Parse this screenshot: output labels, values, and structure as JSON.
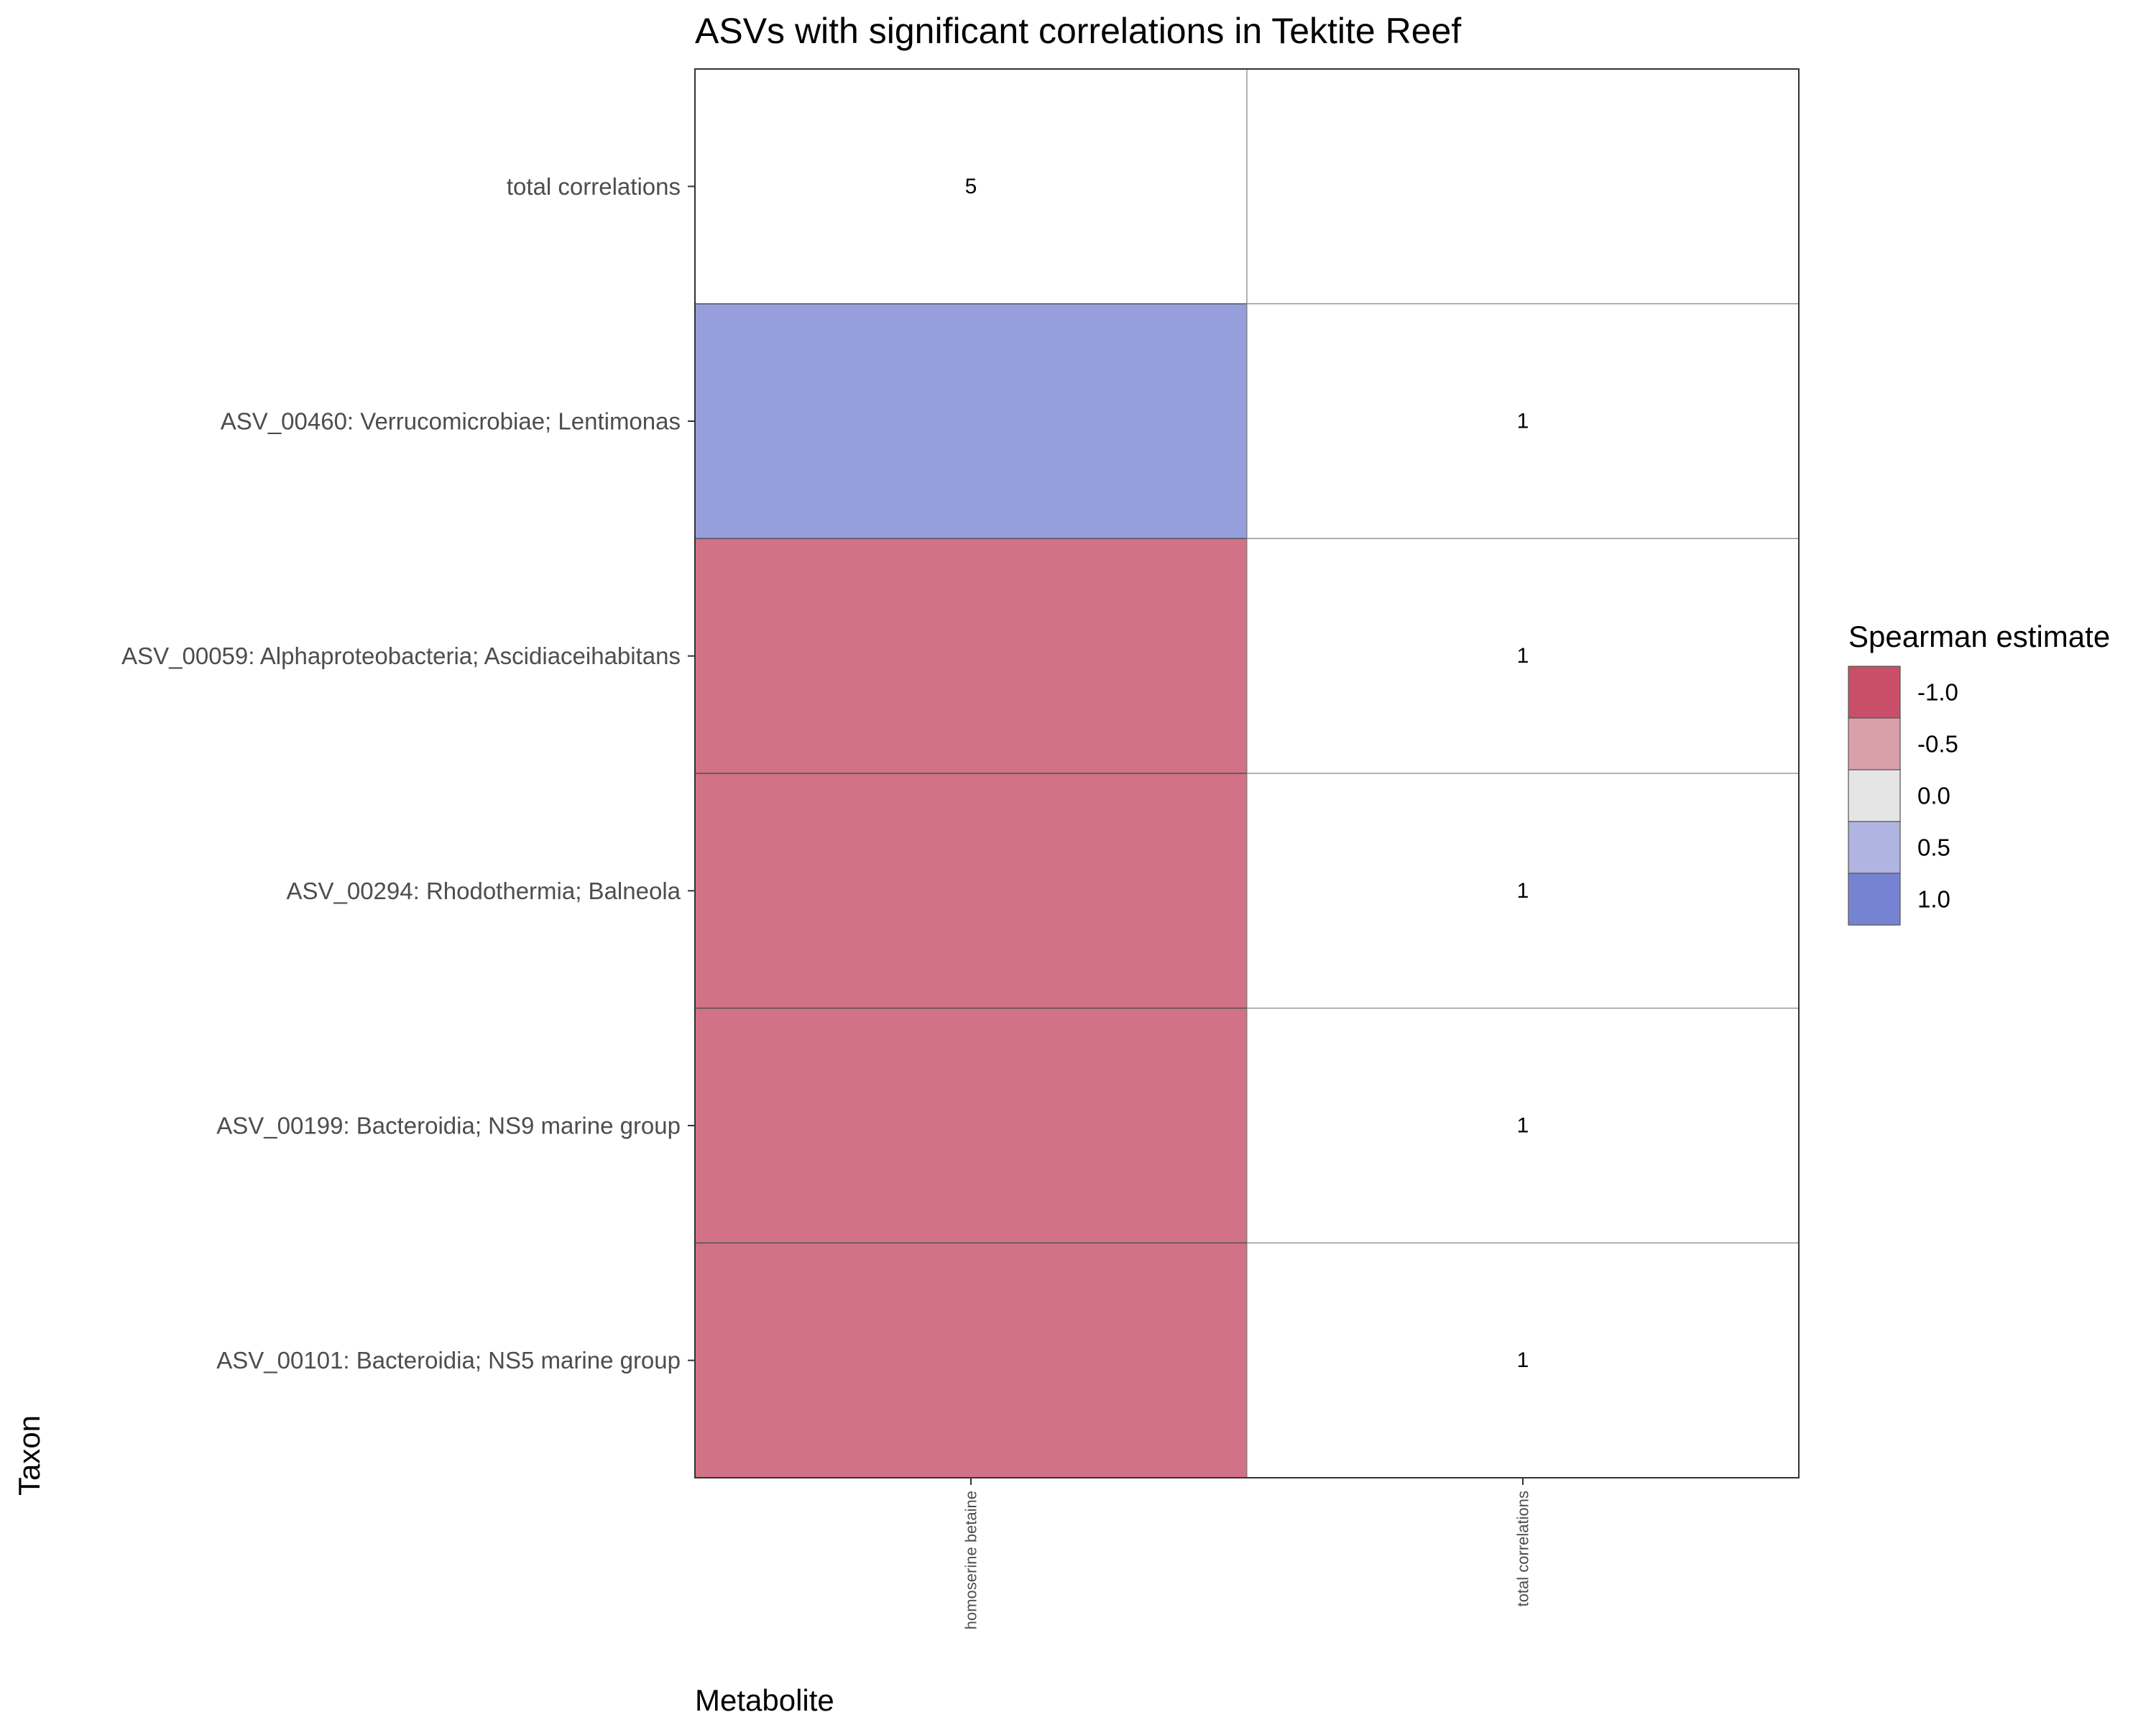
{
  "chart_data": {
    "type": "heatmap",
    "title": "ASVs with significant correlations in Tektite Reef",
    "xlabel": "Metabolite",
    "ylabel": "Taxon",
    "x_categories": [
      "homoserine betaine",
      "total correlations"
    ],
    "y_categories": [
      "total correlations",
      "ASV_00460: Verrucomicrobiae; Lentimonas",
      "ASV_00059: Alphaproteobacteria; Ascidiaceihabitans",
      "ASV_00294: Rhodothermia; Balneola",
      "ASV_00199: Bacteroidia; NS9 marine group",
      "ASV_00101: Bacteroidia; NS5 marine group"
    ],
    "cells": [
      {
        "row": "total correlations",
        "col": "homoserine betaine",
        "estimate": null,
        "label": "5"
      },
      {
        "row": "total correlations",
        "col": "total correlations",
        "estimate": null,
        "label": ""
      },
      {
        "row": "ASV_00460: Verrucomicrobiae; Lentimonas",
        "col": "homoserine betaine",
        "estimate": 0.85,
        "label": ""
      },
      {
        "row": "ASV_00460: Verrucomicrobiae; Lentimonas",
        "col": "total correlations",
        "estimate": null,
        "label": "1"
      },
      {
        "row": "ASV_00059: Alphaproteobacteria; Ascidiaceihabitans",
        "col": "homoserine betaine",
        "estimate": -0.9,
        "label": ""
      },
      {
        "row": "ASV_00059: Alphaproteobacteria; Ascidiaceihabitans",
        "col": "total correlations",
        "estimate": null,
        "label": "1"
      },
      {
        "row": "ASV_00294: Rhodothermia; Balneola",
        "col": "homoserine betaine",
        "estimate": -0.9,
        "label": ""
      },
      {
        "row": "ASV_00294: Rhodothermia; Balneola",
        "col": "total correlations",
        "estimate": null,
        "label": "1"
      },
      {
        "row": "ASV_00199: Bacteroidia; NS9 marine group",
        "col": "homoserine betaine",
        "estimate": -0.9,
        "label": ""
      },
      {
        "row": "ASV_00199: Bacteroidia; NS9 marine group",
        "col": "total correlations",
        "estimate": null,
        "label": "1"
      },
      {
        "row": "ASV_00101: Bacteroidia; NS5 marine group",
        "col": "homoserine betaine",
        "estimate": -0.9,
        "label": ""
      },
      {
        "row": "ASV_00101: Bacteroidia; NS5 marine group",
        "col": "total correlations",
        "estimate": null,
        "label": "1"
      }
    ],
    "legend": {
      "title": "Spearman estimate",
      "placement": "right",
      "entries": [
        {
          "value": -1.0,
          "label": "-1.0",
          "color": "#c94f68"
        },
        {
          "value": -0.5,
          "label": "-0.5",
          "color": "#daa0aa"
        },
        {
          "value": 0.0,
          "label": "0.0",
          "color": "#e5e5e5"
        },
        {
          "value": 0.5,
          "label": "0.5",
          "color": "#b0b4e0"
        },
        {
          "value": 1.0,
          "label": "1.0",
          "color": "#7683d3"
        }
      ]
    },
    "na_color": "#ffffff",
    "grid": false
  }
}
